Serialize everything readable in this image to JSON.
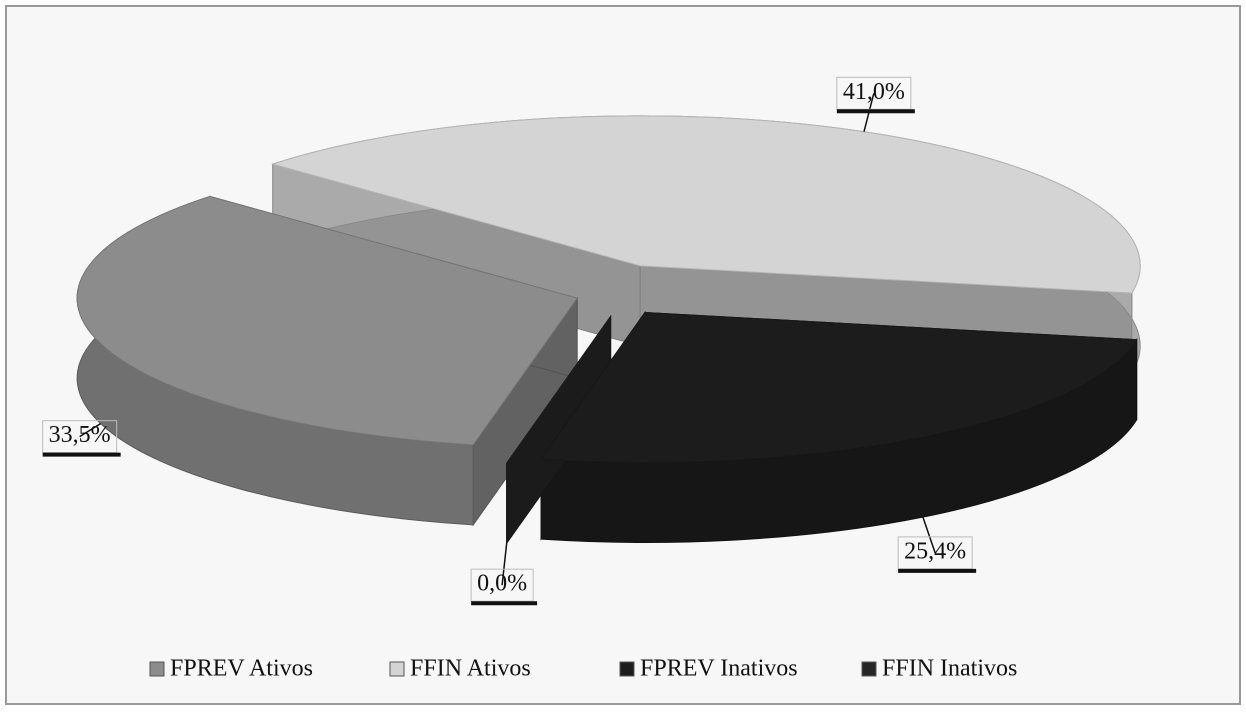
{
  "chart_data": {
    "type": "pie3d",
    "categories": [
      "FPREV Ativos",
      "FFIN Ativos",
      "FPREV Inativos",
      "FFIN Inativos"
    ],
    "values": [
      33.5,
      41.0,
      25.4,
      0.0
    ],
    "value_labels": [
      "33,5%",
      "41,0%",
      "25,4%",
      "0,0%"
    ],
    "colors": [
      "#8c8c8c",
      "#d4d4d4",
      "#1c1c1c",
      "#262626"
    ],
    "legend": "bottom"
  }
}
